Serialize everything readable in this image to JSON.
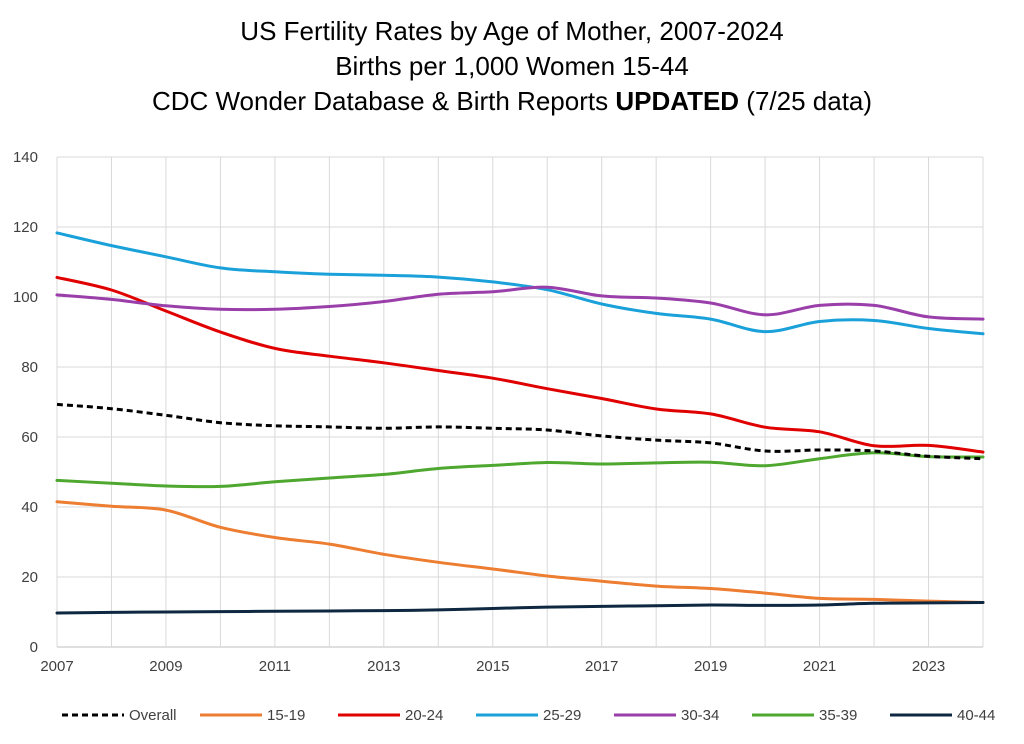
{
  "chart_data": {
    "type": "line",
    "title_lines": [
      {
        "text": "US Fertility Rates by Age of Mother, 2007-2024",
        "bold": ""
      },
      {
        "text": "Births per 1,000 Women 15-44",
        "bold": ""
      },
      {
        "text": "CDC Wonder Database & Birth Reports ",
        "bold": "UPDATED",
        "suffix": " (7/25 data)"
      }
    ],
    "x": [
      2007,
      2008,
      2009,
      2010,
      2011,
      2012,
      2013,
      2014,
      2015,
      2016,
      2017,
      2018,
      2019,
      2020,
      2021,
      2022,
      2023,
      2024
    ],
    "x_ticks": [
      "2007",
      "2009",
      "2011",
      "2013",
      "2015",
      "2017",
      "2019",
      "2021",
      "2023"
    ],
    "ylim": [
      0,
      140
    ],
    "y_ticks": [
      "0",
      "20",
      "40",
      "60",
      "80",
      "100",
      "120",
      "140"
    ],
    "grid": true,
    "legend_position": "bottom",
    "series": [
      {
        "name": "Overall",
        "color": "#000000",
        "dashed": true,
        "values": [
          69.3,
          68.1,
          66.2,
          64.1,
          63.2,
          62.9,
          62.5,
          62.9,
          62.5,
          62.0,
          60.3,
          59.1,
          58.3,
          56.0,
          56.3,
          56.0,
          54.5,
          53.8
        ]
      },
      {
        "name": "15-19",
        "color": "#ED7D31",
        "dashed": false,
        "values": [
          41.5,
          40.2,
          39.1,
          34.2,
          31.3,
          29.4,
          26.5,
          24.2,
          22.3,
          20.3,
          18.8,
          17.4,
          16.7,
          15.4,
          13.9,
          13.6,
          13.1,
          12.7
        ]
      },
      {
        "name": "20-24",
        "color": "#E00000",
        "dashed": false,
        "values": [
          105.6,
          102.0,
          96.0,
          90.0,
          85.3,
          83.1,
          81.2,
          79.0,
          76.8,
          73.8,
          71.0,
          68.0,
          66.6,
          62.8,
          61.5,
          57.5,
          57.6,
          55.7
        ]
      },
      {
        "name": "25-29",
        "color": "#1BA1D9",
        "dashed": false,
        "values": [
          118.3,
          114.7,
          111.5,
          108.3,
          107.2,
          106.5,
          106.2,
          105.7,
          104.3,
          102.1,
          98.0,
          95.3,
          93.7,
          90.1,
          93.0,
          93.3,
          91.0,
          89.5
        ]
      },
      {
        "name": "30-34",
        "color": "#9A3FAA",
        "dashed": false,
        "values": [
          100.6,
          99.3,
          97.5,
          96.5,
          96.5,
          97.3,
          98.7,
          100.8,
          101.5,
          102.8,
          100.3,
          99.7,
          98.3,
          94.9,
          97.6,
          97.6,
          94.3,
          93.7
        ]
      },
      {
        "name": "35-39",
        "color": "#4EA72E",
        "dashed": false,
        "values": [
          47.6,
          46.8,
          46.0,
          45.9,
          47.2,
          48.3,
          49.3,
          51.0,
          51.9,
          52.7,
          52.3,
          52.6,
          52.8,
          51.8,
          53.8,
          55.5,
          54.4,
          54.3
        ]
      },
      {
        "name": "40-44",
        "color": "#0E2841",
        "dashed": false,
        "values": [
          9.7,
          9.9,
          10.0,
          10.1,
          10.2,
          10.3,
          10.4,
          10.6,
          11.0,
          11.4,
          11.6,
          11.8,
          12.0,
          11.9,
          12.0,
          12.5,
          12.6,
          12.7
        ]
      }
    ]
  }
}
